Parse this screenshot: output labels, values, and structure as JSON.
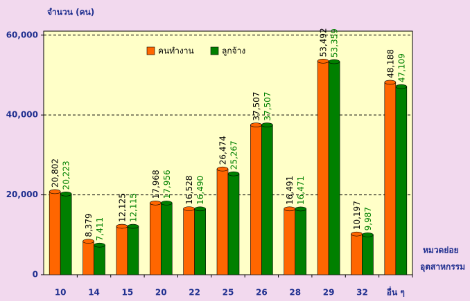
{
  "chart_data": {
    "type": "bar",
    "y_label": "จำนวน (คน)",
    "x_label": [
      "หมวดย่อย",
      "อุตสาหกรรม"
    ],
    "categories": [
      "10",
      "14",
      "15",
      "20",
      "22",
      "25",
      "26",
      "28",
      "29",
      "32",
      "อื่น ๆ"
    ],
    "series": [
      {
        "name": "คนทำงาน",
        "color": "#ff6600",
        "values": [
          20802,
          8379,
          12125,
          17968,
          16528,
          26474,
          37507,
          16491,
          53492,
          10197,
          48188
        ],
        "value_labels": [
          "20,802",
          "8,379",
          "12,125",
          "17,968",
          "16,528",
          "26,474",
          "37,507",
          "16,491",
          "53,492",
          "10,197",
          "48,188"
        ]
      },
      {
        "name": "ลูกจ้าง",
        "color": "#008000",
        "values": [
          20223,
          7411,
          12115,
          17956,
          16490,
          25267,
          37507,
          16471,
          53359,
          9987,
          47109
        ],
        "value_labels": [
          "20,223",
          "7,411",
          "12,115",
          "17,956",
          "16,490",
          "25,267",
          "37,507",
          "16,471",
          "53,359",
          "9,987",
          "47,109"
        ]
      }
    ],
    "ylim": [
      0,
      61000
    ],
    "yticks": [
      0,
      {
        "value": 20000,
        "label": "20,000"
      },
      {
        "value": 40000,
        "label": "40,000"
      },
      {
        "value": 60000,
        "label": "60,000"
      }
    ],
    "grid": true,
    "legend": "top"
  }
}
